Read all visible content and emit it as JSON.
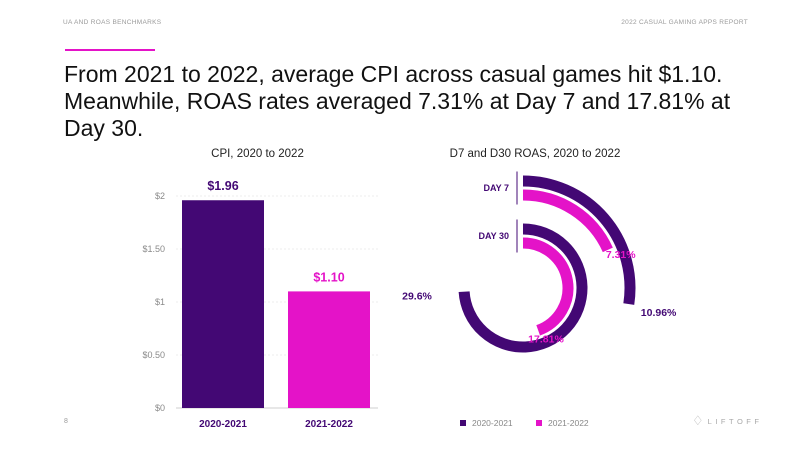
{
  "header": {
    "left": "UA AND ROAS BENCHMARKS",
    "right": "2022 CASUAL GAMING APPS REPORT"
  },
  "headline": "From 2021 to 2022, average CPI across casual games hit $1.10. Meanwhile, ROAS rates averaged 7.31% at Day 7 and 17.81% at Day 30.",
  "colors": {
    "purple": "#430874",
    "magenta": "#e413c8",
    "accent": "#e413c8"
  },
  "page_number": "8",
  "legend": [
    {
      "label": "2020-2021",
      "color": "#430874"
    },
    {
      "label": "2021-2022",
      "color": "#e413c8"
    }
  ],
  "brand": {
    "name": "LIFTOFF",
    "icon": "liftoff-logo-icon"
  },
  "chart_data": [
    {
      "type": "bar",
      "title": "CPI, 2020 to 2022",
      "categories": [
        "2020-2021",
        "2021-2022"
      ],
      "values": [
        1.96,
        1.1
      ],
      "value_labels": [
        "$1.96",
        "$1.10"
      ],
      "colors": [
        "#430874",
        "#e413c8"
      ],
      "yticks": [
        0,
        0.5,
        1,
        1.5,
        2
      ],
      "ytick_labels": [
        "$0",
        "$0.50",
        "$1",
        "$1.50",
        "$2"
      ],
      "ylim": [
        0,
        2.2
      ],
      "grid": true,
      "xlabel": "",
      "ylabel": ""
    },
    {
      "type": "radial-bar",
      "title": "D7 and D30 ROAS, 2020 to 2022",
      "series": [
        {
          "name": "2020-2021",
          "color": "#430874"
        },
        {
          "name": "2021-2022",
          "color": "#e413c8"
        }
      ],
      "groups": [
        {
          "name": "DAY 7",
          "values": [
            10.96,
            7.31
          ],
          "labels": [
            "10.96%",
            "7.31%"
          ]
        },
        {
          "name": "DAY 30",
          "values": [
            29.6,
            17.81
          ],
          "labels": [
            "29.6%",
            "17.81%"
          ]
        }
      ]
    }
  ]
}
